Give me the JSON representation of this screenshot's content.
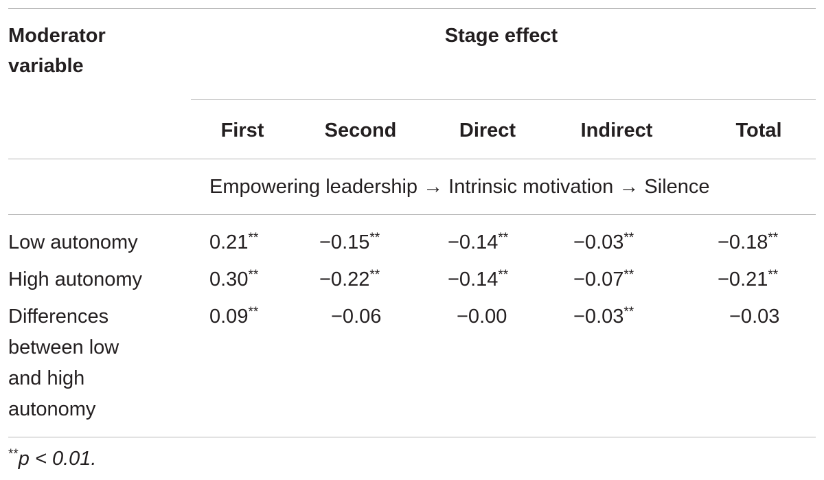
{
  "table": {
    "moderator_header_line1": "Moderator",
    "moderator_header_line2": "variable",
    "group_header": "Stage effect",
    "columns": [
      "First",
      "Second",
      "Direct",
      "Indirect",
      "Total"
    ],
    "path_row": "Empowering leadership → Intrinsic motivation → Silence",
    "rows": [
      {
        "label_lines": [
          "Low autonomy"
        ],
        "cells": [
          {
            "value": "0.21",
            "sig": "**"
          },
          {
            "value": "−0.15",
            "sig": "**"
          },
          {
            "value": "−0.14",
            "sig": "**"
          },
          {
            "value": "−0.03",
            "sig": "**"
          },
          {
            "value": "−0.18",
            "sig": "**"
          }
        ]
      },
      {
        "label_lines": [
          "High autonomy"
        ],
        "cells": [
          {
            "value": "0.30",
            "sig": "**"
          },
          {
            "value": "−0.22",
            "sig": "**"
          },
          {
            "value": "−0.14",
            "sig": "**"
          },
          {
            "value": "−0.07",
            "sig": "**"
          },
          {
            "value": "−0.21",
            "sig": "**"
          }
        ]
      },
      {
        "label_lines": [
          "Differences",
          "between low",
          "and high",
          "autonomy"
        ],
        "cells": [
          {
            "value": "0.09",
            "sig": "**"
          },
          {
            "value": "−0.06",
            "sig": ""
          },
          {
            "value": "−0.00",
            "sig": ""
          },
          {
            "value": "−0.03",
            "sig": "**"
          },
          {
            "value": "−0.03",
            "sig": ""
          }
        ]
      }
    ],
    "footnote_sig": "**",
    "footnote_text": "p < 0.01."
  }
}
